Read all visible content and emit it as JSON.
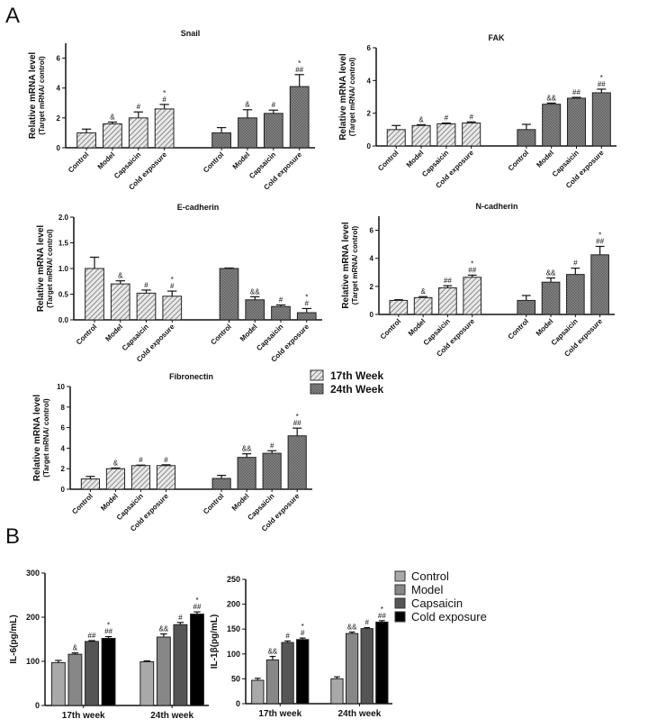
{
  "panels": {
    "a_label": "A",
    "b_label": "B"
  },
  "legend_a": {
    "items": [
      {
        "label": "17th  Week",
        "pattern": "hatch-light"
      },
      {
        "label": "24th  Week",
        "pattern": "crosshatch-dark"
      }
    ]
  },
  "legend_b": {
    "items": [
      {
        "label": "Control",
        "color": "#a9a9a9"
      },
      {
        "label": "Model",
        "color": "#878787"
      },
      {
        "label": "Capsaicin",
        "color": "#555555"
      },
      {
        "label": "Cold exposure",
        "color": "#000000"
      }
    ]
  },
  "chart_data": [
    {
      "type": "bar",
      "title": "Snail",
      "ylabel": [
        "Relative mRNA level",
        "(Target mRNA/ control)"
      ],
      "ylim": [
        0,
        7
      ],
      "yticks": [
        0,
        2,
        4,
        6
      ],
      "categories": [
        "Control",
        "Model",
        "Capsaicin",
        "Cold exposure",
        "Control",
        "Model",
        "Capsaicin",
        "Cold exposure"
      ],
      "groups": [
        "17th Week",
        "17th Week",
        "17th Week",
        "17th Week",
        "24th Week",
        "24th Week",
        "24th Week",
        "24th Week"
      ],
      "values": [
        1.0,
        1.6,
        2.0,
        2.6,
        1.0,
        2.0,
        2.3,
        4.1
      ],
      "errors": [
        0.25,
        0.12,
        0.4,
        0.3,
        0.35,
        0.55,
        0.22,
        0.8
      ],
      "annotations": [
        "",
        "&",
        "#",
        "*|#",
        "",
        "&",
        "#",
        "*|##"
      ]
    },
    {
      "type": "bar",
      "title": "FAK",
      "ylabel": [
        "Relative mRNA level",
        "(Target mRNA/ control)"
      ],
      "ylim": [
        0,
        6
      ],
      "yticks": [
        0,
        2,
        4,
        6
      ],
      "categories": [
        "Control",
        "Model",
        "Capsaicin",
        "Cold exposure",
        "Control",
        "Model",
        "Capsaicin",
        "Cold exposure"
      ],
      "groups": [
        "17th Week",
        "17th Week",
        "17th Week",
        "17th Week",
        "24th Week",
        "24th Week",
        "24th Week",
        "24th Week"
      ],
      "values": [
        1.0,
        1.25,
        1.35,
        1.4,
        1.0,
        2.55,
        2.92,
        3.25
      ],
      "errors": [
        0.25,
        0.05,
        0.05,
        0.07,
        0.32,
        0.07,
        0.05,
        0.22
      ],
      "annotations": [
        "",
        "&",
        "#",
        "#",
        "",
        "&&",
        "##",
        "*|##"
      ]
    },
    {
      "type": "bar",
      "title": "E-cadherin",
      "ylabel": [
        "Relative mRNA level",
        "(Target mRNA/ control)"
      ],
      "ylim": [
        0,
        2
      ],
      "yticks": [
        0.0,
        0.5,
        1.0,
        1.5,
        2.0
      ],
      "categories": [
        "Control",
        "Model",
        "Capsaicin",
        "Cold exposure",
        "Control",
        "Model",
        "Capsaicin",
        "Cold exposure"
      ],
      "groups": [
        "17th Week",
        "17th Week",
        "17th Week",
        "17th Week",
        "24th Week",
        "24th Week",
        "24th Week",
        "24th Week"
      ],
      "values": [
        1.0,
        0.7,
        0.52,
        0.46,
        1.0,
        0.39,
        0.26,
        0.14
      ],
      "errors": [
        0.22,
        0.06,
        0.06,
        0.1,
        0.01,
        0.06,
        0.03,
        0.08
      ],
      "annotations": [
        "",
        "&",
        "#",
        "*|#",
        "",
        "&&",
        "#",
        "*|#"
      ]
    },
    {
      "type": "bar",
      "title": "N-cadherin",
      "ylabel": [
        "Relative mRNA level",
        "(Target mRNA/ control)"
      ],
      "ylim": [
        0,
        7
      ],
      "yticks": [
        0,
        2,
        4,
        6
      ],
      "categories": [
        "Control",
        "Model",
        "Capsaicin",
        "Cold exposure",
        "Control",
        "Model",
        "Capsaicin",
        "Cold exposure"
      ],
      "groups": [
        "17th Week",
        "17th Week",
        "17th Week",
        "17th Week",
        "24th Week",
        "24th Week",
        "24th Week",
        "24th Week"
      ],
      "values": [
        1.0,
        1.2,
        1.9,
        2.65,
        1.0,
        2.3,
        2.85,
        4.25
      ],
      "errors": [
        0.05,
        0.07,
        0.15,
        0.15,
        0.35,
        0.3,
        0.45,
        0.6
      ],
      "annotations": [
        "",
        "&",
        "##",
        "*|##",
        "",
        "&&",
        "#",
        "*|##"
      ]
    },
    {
      "type": "bar",
      "title": "Fibronectin",
      "ylabel": [
        "Relative mRNA level",
        "(Target mRNA/ control)"
      ],
      "ylim": [
        0,
        10
      ],
      "yticks": [
        0,
        2,
        4,
        6,
        8,
        10
      ],
      "categories": [
        "Control",
        "Model",
        "Capsaicin",
        "Cold exposure",
        "Control",
        "Model",
        "Capsaicin",
        "Cold exposure"
      ],
      "groups": [
        "17th Week",
        "17th Week",
        "17th Week",
        "17th Week",
        "24th Week",
        "24th Week",
        "24th Week",
        "24th Week"
      ],
      "values": [
        1.0,
        2.0,
        2.3,
        2.3,
        1.05,
        3.1,
        3.5,
        5.2
      ],
      "errors": [
        0.25,
        0.07,
        0.05,
        0.08,
        0.3,
        0.35,
        0.25,
        0.75
      ],
      "annotations": [
        "",
        "&",
        "#",
        "#",
        "",
        "&&",
        "#",
        "*|##"
      ]
    },
    {
      "type": "bar",
      "title": "",
      "ylabel": [
        "IL-6(pg/mL)"
      ],
      "ylim": [
        0,
        300
      ],
      "yticks": [
        0,
        100,
        200,
        300
      ],
      "categories": [
        "17th week",
        "24th week"
      ],
      "series": [
        {
          "name": "Control",
          "values": [
            97,
            99
          ],
          "errors": [
            5,
            2
          ],
          "annotations": [
            "",
            ""
          ]
        },
        {
          "name": "Model",
          "values": [
            116,
            155
          ],
          "errors": [
            3,
            7
          ],
          "annotations": [
            "&",
            "&&"
          ]
        },
        {
          "name": "Capsaicin",
          "values": [
            145,
            183
          ],
          "errors": [
            2,
            5
          ],
          "annotations": [
            "##",
            "#"
          ]
        },
        {
          "name": "Cold exposure",
          "values": [
            152,
            207
          ],
          "errors": [
            4,
            5
          ],
          "annotations": [
            "*|##",
            "*|##"
          ]
        }
      ]
    },
    {
      "type": "bar",
      "title": "",
      "ylabel": [
        "IL-1β(pg/mL)"
      ],
      "ylim": [
        0,
        250
      ],
      "yticks": [
        0,
        50,
        100,
        150,
        200,
        250
      ],
      "categories": [
        "17th week",
        "24th week"
      ],
      "series": [
        {
          "name": "Control",
          "values": [
            47,
            50
          ],
          "errors": [
            4,
            4
          ],
          "annotations": [
            "",
            ""
          ]
        },
        {
          "name": "Model",
          "values": [
            88,
            141
          ],
          "errors": [
            7,
            3
          ],
          "annotations": [
            "&&",
            "&&"
          ]
        },
        {
          "name": "Capsaicin",
          "values": [
            123,
            151
          ],
          "errors": [
            3,
            2
          ],
          "annotations": [
            "#",
            "#"
          ]
        },
        {
          "name": "Cold exposure",
          "values": [
            129,
            164
          ],
          "errors": [
            3,
            3
          ],
          "annotations": [
            "*|#",
            "*|##"
          ]
        }
      ]
    }
  ]
}
